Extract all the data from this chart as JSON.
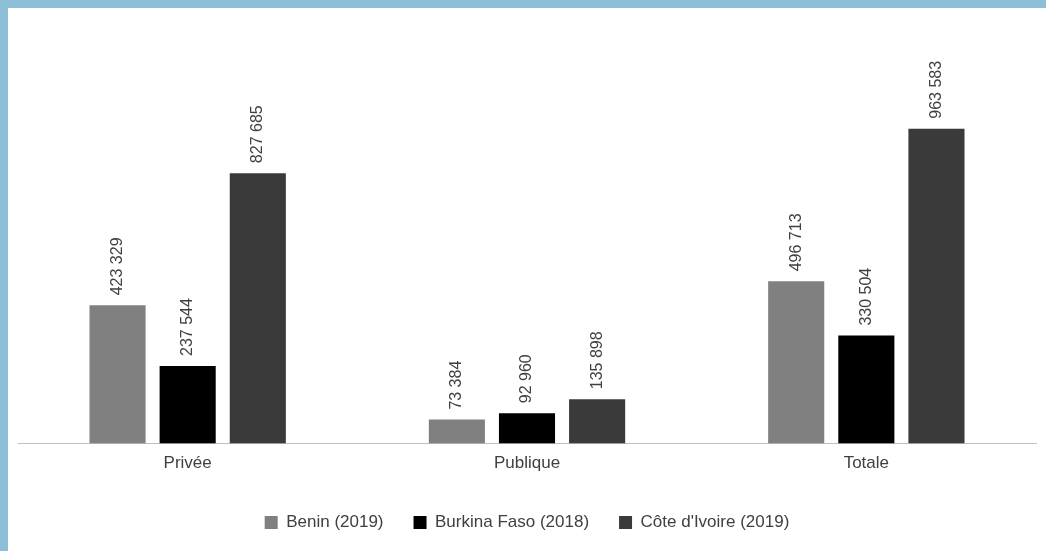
{
  "chart_data": {
    "type": "bar",
    "categories": [
      "Privée",
      "Publique",
      "Totale"
    ],
    "series": [
      {
        "name": "Benin (2019)",
        "color": "#808080",
        "values": [
          423329,
          73384,
          496713
        ]
      },
      {
        "name": "Burkina Faso (2018)",
        "color": "#000000",
        "values": [
          237544,
          92960,
          330504
        ]
      },
      {
        "name": "Côte d'Ivoire (2019)",
        "color": "#3a3a3a",
        "values": [
          827685,
          135898,
          963583
        ]
      }
    ],
    "data_labels": true,
    "legend": "bottom",
    "grid": false
  }
}
